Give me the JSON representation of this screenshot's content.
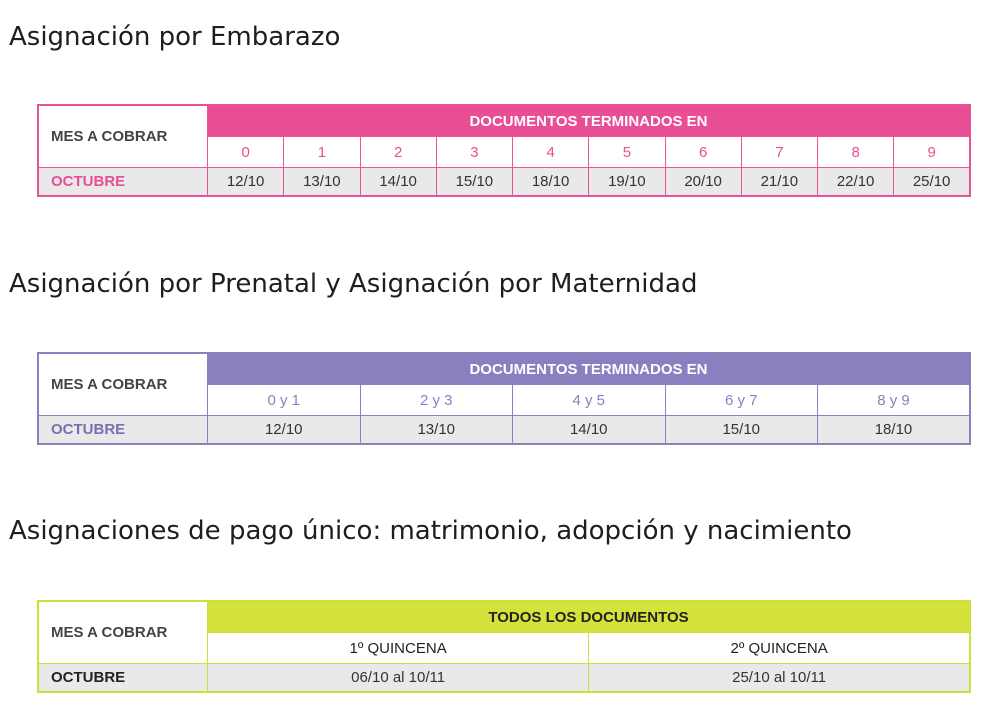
{
  "sections": [
    {
      "title": "Asignación por Embarazo",
      "table": {
        "mes_label": "MES A COBRAR",
        "header": "DOCUMENTOS TERMINADOS EN",
        "columns": [
          "0",
          "1",
          "2",
          "3",
          "4",
          "5",
          "6",
          "7",
          "8",
          "9"
        ],
        "month": "OCTUBRE",
        "values": [
          "12/10",
          "13/10",
          "14/10",
          "15/10",
          "18/10",
          "19/10",
          "20/10",
          "21/10",
          "22/10",
          "25/10"
        ],
        "color": "#e94e94"
      }
    },
    {
      "title": "Asignación por Prenatal y Asignación por Maternidad",
      "table": {
        "mes_label": "MES A COBRAR",
        "header": "DOCUMENTOS TERMINADOS EN",
        "columns": [
          "0 y 1",
          "2 y 3",
          "4 y 5",
          "6 y 7",
          "8 y 9"
        ],
        "month": "OCTUBRE",
        "values": [
          "12/10",
          "13/10",
          "14/10",
          "15/10",
          "18/10"
        ],
        "color": "#8b7fc0"
      }
    },
    {
      "title": "Asignaciones de pago único: matrimonio, adopción y nacimiento",
      "table": {
        "mes_label": "MES A COBRAR",
        "header": "TODOS LOS DOCUMENTOS",
        "columns": [
          "1º QUINCENA",
          "2º QUINCENA"
        ],
        "month": "OCTUBRE",
        "values": [
          "06/10 al 10/11",
          "25/10 al 10/11"
        ],
        "color": "#d5e23b"
      }
    }
  ]
}
